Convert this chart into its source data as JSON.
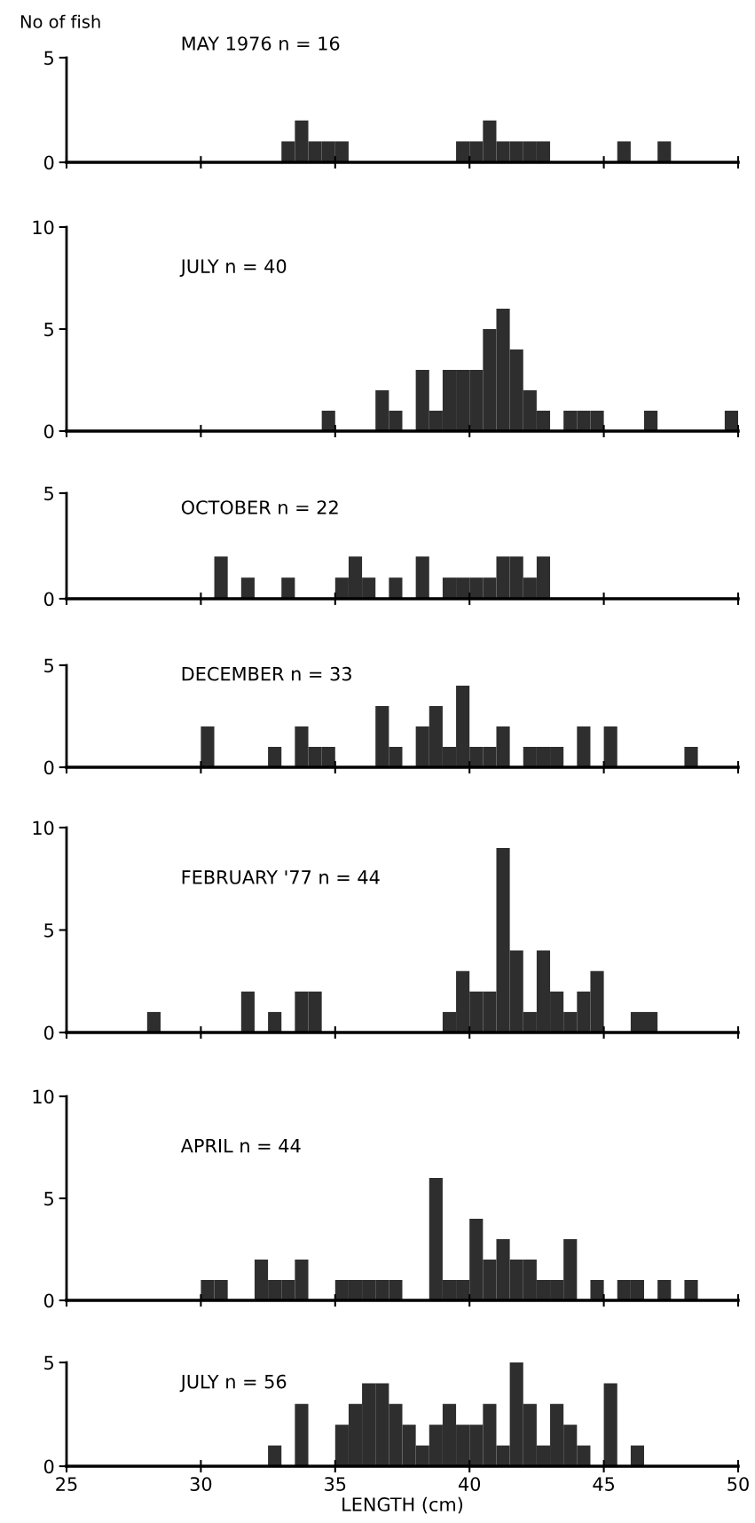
{
  "chart_data": [
    {
      "type": "histogram",
      "title": "MAY 1976 n = 16",
      "ylabel": "No of fish",
      "bins": [
        25,
        25.5,
        26,
        26.5,
        27,
        27.5,
        28,
        28.5,
        29,
        29.5,
        30,
        30.5,
        31,
        31.5,
        32,
        32.5,
        33,
        33.5,
        34,
        34.5,
        35,
        35.5,
        36,
        36.5,
        37,
        37.5,
        38,
        38.5,
        39,
        39.5,
        40,
        40.5,
        41,
        41.5,
        42,
        42.5,
        43,
        43.5,
        44,
        44.5,
        45,
        45.5,
        46,
        46.5,
        47,
        47.5,
        48,
        48.5,
        49,
        49.5,
        50
      ],
      "values": [
        0,
        0,
        0,
        0,
        0,
        0,
        0,
        0,
        0,
        0,
        0,
        0,
        0,
        0,
        0,
        0,
        1,
        2,
        1,
        1,
        1,
        0,
        0,
        0,
        0,
        0,
        0,
        0,
        0,
        1,
        1,
        2,
        1,
        1,
        1,
        1,
        0,
        0,
        0,
        0,
        0,
        1,
        0,
        0,
        1,
        0,
        0,
        0,
        0,
        0
      ],
      "color": "#2e2e2e",
      "xlim": [
        25,
        50
      ],
      "xticks": [
        25,
        30,
        35,
        40,
        45,
        50
      ],
      "ylim": [
        0,
        5
      ],
      "yticks": [
        0,
        5
      ],
      "tick_labels": "y",
      "grid": false,
      "legend": false
    },
    {
      "type": "histogram",
      "title": "JULY n = 40",
      "bins": [
        25,
        25.5,
        26,
        26.5,
        27,
        27.5,
        28,
        28.5,
        29,
        29.5,
        30,
        30.5,
        31,
        31.5,
        32,
        32.5,
        33,
        33.5,
        34,
        34.5,
        35,
        35.5,
        36,
        36.5,
        37,
        37.5,
        38,
        38.5,
        39,
        39.5,
        40,
        40.5,
        41,
        41.5,
        42,
        42.5,
        43,
        43.5,
        44,
        44.5,
        45,
        45.5,
        46,
        46.5,
        47,
        47.5,
        48,
        48.5,
        49,
        49.5,
        50
      ],
      "values": [
        0,
        0,
        0,
        0,
        0,
        0,
        0,
        0,
        0,
        0,
        0,
        0,
        0,
        0,
        0,
        0,
        0,
        0,
        0,
        1,
        0,
        0,
        0,
        2,
        1,
        0,
        3,
        1,
        3,
        3,
        3,
        5,
        6,
        4,
        2,
        1,
        0,
        1,
        1,
        1,
        0,
        0,
        0,
        1,
        0,
        0,
        0,
        0,
        0,
        1
      ],
      "color": "#2e2e2e",
      "xlim": [
        25,
        50
      ],
      "xticks": [
        25,
        30,
        35,
        40,
        45,
        50
      ],
      "ylim": [
        0,
        10
      ],
      "yticks": [
        0,
        5,
        10
      ],
      "tick_labels": "y",
      "grid": false,
      "legend": false
    },
    {
      "type": "histogram",
      "title": "OCTOBER n = 22",
      "bins": [
        25,
        25.5,
        26,
        26.5,
        27,
        27.5,
        28,
        28.5,
        29,
        29.5,
        30,
        30.5,
        31,
        31.5,
        32,
        32.5,
        33,
        33.5,
        34,
        34.5,
        35,
        35.5,
        36,
        36.5,
        37,
        37.5,
        38,
        38.5,
        39,
        39.5,
        40,
        40.5,
        41,
        41.5,
        42,
        42.5,
        43,
        43.5,
        44,
        44.5,
        45,
        45.5,
        46,
        46.5,
        47,
        47.5,
        48,
        48.5,
        49,
        49.5,
        50
      ],
      "values": [
        0,
        0,
        0,
        0,
        0,
        0,
        0,
        0,
        0,
        0,
        0,
        2,
        0,
        1,
        0,
        0,
        1,
        0,
        0,
        0,
        1,
        2,
        1,
        0,
        1,
        0,
        2,
        0,
        1,
        1,
        1,
        1,
        2,
        2,
        1,
        2,
        0,
        0,
        0,
        0,
        0,
        0,
        0,
        0,
        0,
        0,
        0,
        0,
        0,
        0
      ],
      "color": "#2e2e2e",
      "xlim": [
        25,
        50
      ],
      "xticks": [
        25,
        30,
        35,
        40,
        45,
        50
      ],
      "ylim": [
        0,
        5
      ],
      "yticks": [
        0,
        5
      ],
      "tick_labels": "y",
      "grid": false,
      "legend": false
    },
    {
      "type": "histogram",
      "title": "DECEMBER n = 33",
      "bins": [
        25,
        25.5,
        26,
        26.5,
        27,
        27.5,
        28,
        28.5,
        29,
        29.5,
        30,
        30.5,
        31,
        31.5,
        32,
        32.5,
        33,
        33.5,
        34,
        34.5,
        35,
        35.5,
        36,
        36.5,
        37,
        37.5,
        38,
        38.5,
        39,
        39.5,
        40,
        40.5,
        41,
        41.5,
        42,
        42.5,
        43,
        43.5,
        44,
        44.5,
        45,
        45.5,
        46,
        46.5,
        47,
        47.5,
        48,
        48.5,
        49,
        49.5,
        50
      ],
      "values": [
        0,
        0,
        0,
        0,
        0,
        0,
        0,
        0,
        0,
        0,
        2,
        0,
        0,
        0,
        0,
        1,
        0,
        2,
        1,
        1,
        0,
        0,
        0,
        3,
        1,
        0,
        2,
        3,
        1,
        4,
        1,
        1,
        2,
        0,
        1,
        1,
        1,
        0,
        2,
        0,
        2,
        0,
        0,
        0,
        0,
        0,
        1,
        0,
        0,
        0
      ],
      "color": "#2e2e2e",
      "xlim": [
        25,
        50
      ],
      "xticks": [
        25,
        30,
        35,
        40,
        45,
        50
      ],
      "ylim": [
        0,
        5
      ],
      "yticks": [
        0,
        5
      ],
      "tick_labels": "y",
      "grid": false,
      "legend": false
    },
    {
      "type": "histogram",
      "title": "FEBRUARY '77 n = 44",
      "bins": [
        25,
        25.5,
        26,
        26.5,
        27,
        27.5,
        28,
        28.5,
        29,
        29.5,
        30,
        30.5,
        31,
        31.5,
        32,
        32.5,
        33,
        33.5,
        34,
        34.5,
        35,
        35.5,
        36,
        36.5,
        37,
        37.5,
        38,
        38.5,
        39,
        39.5,
        40,
        40.5,
        41,
        41.5,
        42,
        42.5,
        43,
        43.5,
        44,
        44.5,
        45,
        45.5,
        46,
        46.5,
        47,
        47.5,
        48,
        48.5,
        49,
        49.5,
        50
      ],
      "values": [
        0,
        0,
        0,
        0,
        0,
        0,
        1,
        0,
        0,
        0,
        0,
        0,
        0,
        2,
        0,
        1,
        0,
        2,
        2,
        0,
        0,
        0,
        0,
        0,
        0,
        0,
        0,
        0,
        1,
        3,
        2,
        2,
        9,
        4,
        1,
        4,
        2,
        1,
        2,
        3,
        0,
        0,
        1,
        1,
        0,
        0,
        0,
        0,
        0,
        0
      ],
      "color": "#2e2e2e",
      "xlim": [
        25,
        50
      ],
      "xticks": [
        25,
        30,
        35,
        40,
        45,
        50
      ],
      "ylim": [
        0,
        10
      ],
      "yticks": [
        0,
        5,
        10
      ],
      "tick_labels": "y",
      "grid": false,
      "legend": false
    },
    {
      "type": "histogram",
      "title": "APRIL n = 44",
      "bins": [
        25,
        25.5,
        26,
        26.5,
        27,
        27.5,
        28,
        28.5,
        29,
        29.5,
        30,
        30.5,
        31,
        31.5,
        32,
        32.5,
        33,
        33.5,
        34,
        34.5,
        35,
        35.5,
        36,
        36.5,
        37,
        37.5,
        38,
        38.5,
        39,
        39.5,
        40,
        40.5,
        41,
        41.5,
        42,
        42.5,
        43,
        43.5,
        44,
        44.5,
        45,
        45.5,
        46,
        46.5,
        47,
        47.5,
        48,
        48.5,
        49,
        49.5,
        50
      ],
      "values": [
        0,
        0,
        0,
        0,
        0,
        0,
        0,
        0,
        0,
        0,
        1,
        1,
        0,
        0,
        2,
        1,
        1,
        2,
        0,
        0,
        1,
        1,
        1,
        1,
        1,
        0,
        0,
        6,
        1,
        1,
        4,
        2,
        3,
        2,
        2,
        1,
        1,
        3,
        0,
        1,
        0,
        1,
        1,
        0,
        1,
        0,
        1,
        0,
        0,
        0
      ],
      "color": "#2e2e2e",
      "xlim": [
        25,
        50
      ],
      "xticks": [
        25,
        30,
        35,
        40,
        45,
        50
      ],
      "ylim": [
        0,
        10
      ],
      "yticks": [
        0,
        5,
        10
      ],
      "tick_labels": "y",
      "grid": false,
      "legend": false
    },
    {
      "type": "histogram",
      "title": "JULY n = 56",
      "xlabel": "LENGTH (cm)",
      "bins": [
        25,
        25.5,
        26,
        26.5,
        27,
        27.5,
        28,
        28.5,
        29,
        29.5,
        30,
        30.5,
        31,
        31.5,
        32,
        32.5,
        33,
        33.5,
        34,
        34.5,
        35,
        35.5,
        36,
        36.5,
        37,
        37.5,
        38,
        38.5,
        39,
        39.5,
        40,
        40.5,
        41,
        41.5,
        42,
        42.5,
        43,
        43.5,
        44,
        44.5,
        45,
        45.5,
        46,
        46.5,
        47,
        47.5,
        48,
        48.5,
        49,
        49.5,
        50
      ],
      "values": [
        0,
        0,
        0,
        0,
        0,
        0,
        0,
        0,
        0,
        0,
        0,
        0,
        0,
        0,
        0,
        1,
        0,
        3,
        0,
        0,
        2,
        3,
        4,
        4,
        3,
        2,
        1,
        2,
        3,
        2,
        2,
        3,
        1,
        5,
        3,
        1,
        3,
        2,
        1,
        0,
        4,
        0,
        1,
        0,
        0,
        0,
        0,
        0,
        0,
        0
      ],
      "color": "#2e2e2e",
      "xlim": [
        25,
        50
      ],
      "xticks": [
        25,
        30,
        35,
        40,
        45,
        50
      ],
      "ylim": [
        0,
        5
      ],
      "yticks": [
        0,
        5
      ],
      "grid": false,
      "legend": false
    }
  ]
}
